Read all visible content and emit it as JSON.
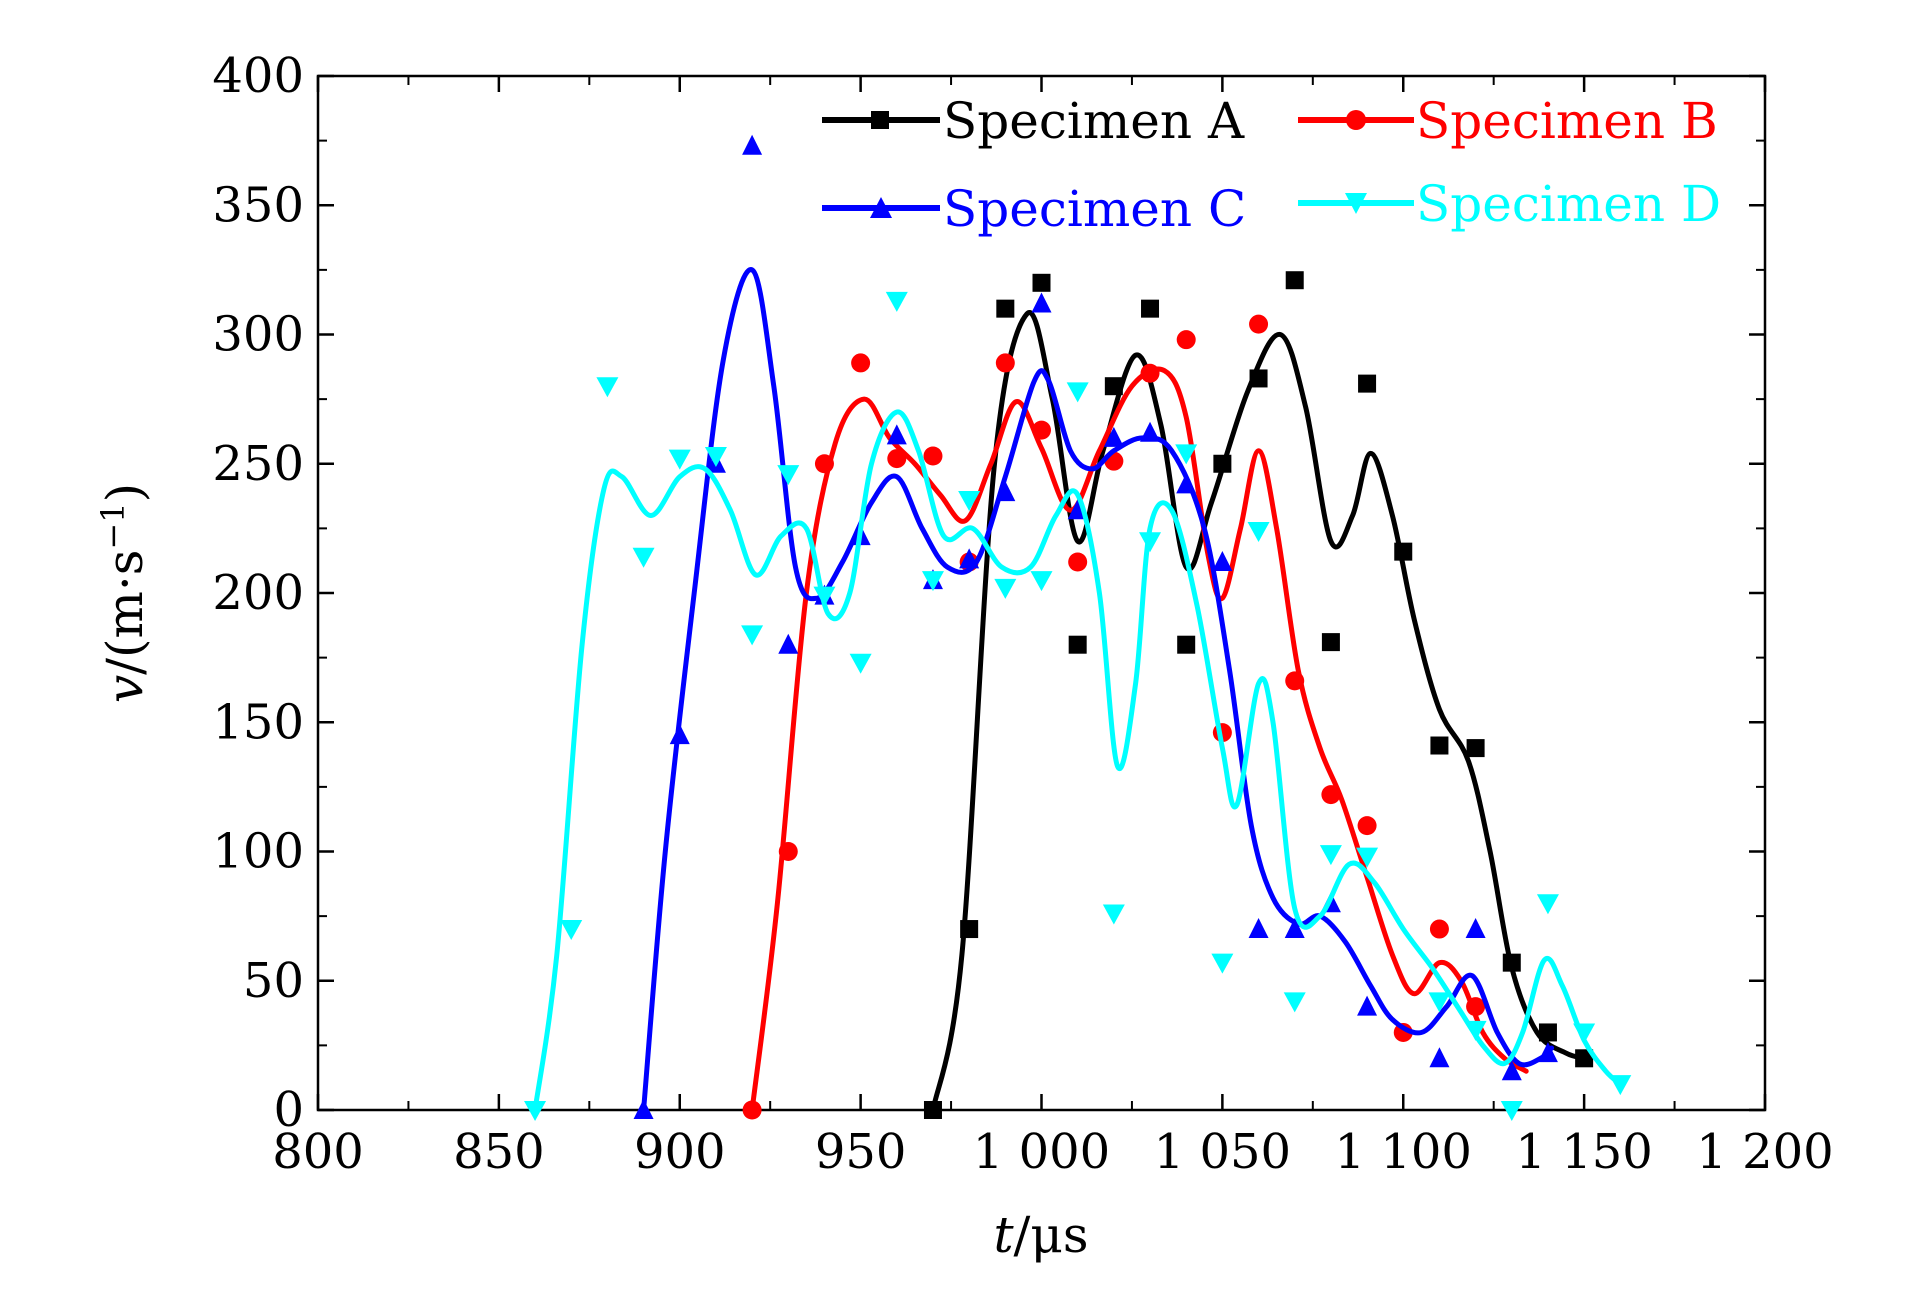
{
  "chart_data": {
    "type": "scatter",
    "xlabel": {
      "var": "t",
      "unit": "/μs"
    },
    "ylabel": {
      "var": "v",
      "unit": "/(m·s",
      "sup": "−1",
      "close": ")"
    },
    "xlim": [
      800,
      1200
    ],
    "ylim": [
      0,
      400
    ],
    "xticks": [
      800,
      850,
      900,
      950,
      1000,
      1050,
      1100,
      1150,
      1200
    ],
    "xtick_labels": [
      "800",
      "850",
      "900",
      "950",
      "1 000",
      "1 050",
      "1 100",
      "1 150",
      "1 200"
    ],
    "yticks": [
      0,
      50,
      100,
      150,
      200,
      250,
      300,
      350,
      400
    ],
    "ytick_labels": [
      "0",
      "50",
      "100",
      "150",
      "200",
      "250",
      "300",
      "350",
      "400"
    ],
    "grid": false,
    "legend": "top-right",
    "series": [
      {
        "name": "Specimen A",
        "color": "#000000",
        "marker": "square",
        "x": [
          970,
          980,
          990,
          1000,
          1010,
          1020,
          1030,
          1040,
          1050,
          1060,
          1070,
          1080,
          1090,
          1100,
          1110,
          1120,
          1130,
          1140,
          1150
        ],
        "y": [
          0,
          70,
          310,
          320,
          180,
          280,
          310,
          180,
          250,
          283,
          321,
          181,
          281,
          216,
          141,
          140,
          57,
          30,
          20
        ],
        "curve": [
          [
            970,
            0
          ],
          [
            978,
            60
          ],
          [
            987,
            250
          ],
          [
            996,
            308
          ],
          [
            1003,
            275
          ],
          [
            1010,
            220
          ],
          [
            1017,
            255
          ],
          [
            1026,
            292
          ],
          [
            1033,
            265
          ],
          [
            1040,
            210
          ],
          [
            1047,
            235
          ],
          [
            1057,
            278
          ],
          [
            1066,
            300
          ],
          [
            1073,
            272
          ],
          [
            1080,
            220
          ],
          [
            1086,
            230
          ],
          [
            1091,
            254
          ],
          [
            1097,
            230
          ],
          [
            1103,
            190
          ],
          [
            1110,
            155
          ],
          [
            1118,
            135
          ],
          [
            1124,
            100
          ],
          [
            1130,
            55
          ],
          [
            1137,
            30
          ],
          [
            1145,
            22
          ],
          [
            1150,
            20
          ]
        ]
      },
      {
        "name": "Specimen B",
        "color": "#ff0000",
        "marker": "circle",
        "x": [
          920,
          930,
          940,
          950,
          960,
          970,
          980,
          990,
          1000,
          1010,
          1020,
          1030,
          1040,
          1050,
          1060,
          1070,
          1080,
          1090,
          1100,
          1110,
          1120
        ],
        "y": [
          0,
          100,
          250,
          289,
          252,
          253,
          212,
          289,
          263,
          212,
          251,
          285,
          298,
          146,
          304,
          166,
          122,
          110,
          30,
          70,
          40
        ],
        "curve": [
          [
            920,
            0
          ],
          [
            927,
            80
          ],
          [
            935,
            200
          ],
          [
            943,
            258
          ],
          [
            951,
            275
          ],
          [
            958,
            260
          ],
          [
            965,
            250
          ],
          [
            972,
            238
          ],
          [
            979,
            228
          ],
          [
            986,
            250
          ],
          [
            993,
            274
          ],
          [
            1000,
            256
          ],
          [
            1008,
            232
          ],
          [
            1016,
            255
          ],
          [
            1025,
            280
          ],
          [
            1034,
            286
          ],
          [
            1040,
            268
          ],
          [
            1046,
            215
          ],
          [
            1050,
            198
          ],
          [
            1055,
            225
          ],
          [
            1060,
            255
          ],
          [
            1065,
            225
          ],
          [
            1071,
            170
          ],
          [
            1077,
            140
          ],
          [
            1083,
            120
          ],
          [
            1090,
            90
          ],
          [
            1097,
            60
          ],
          [
            1103,
            45
          ],
          [
            1110,
            57
          ],
          [
            1116,
            50
          ],
          [
            1122,
            30
          ],
          [
            1128,
            20
          ],
          [
            1134,
            15
          ]
        ]
      },
      {
        "name": "Specimen C",
        "color": "#0000ff",
        "marker": "triangle-up",
        "x": [
          890,
          900,
          910,
          920,
          930,
          940,
          950,
          960,
          970,
          980,
          990,
          1000,
          1010,
          1020,
          1030,
          1040,
          1050,
          1060,
          1070,
          1080,
          1090,
          1110,
          1120,
          1130,
          1140
        ],
        "y": [
          0,
          145,
          250,
          373,
          180,
          199,
          222,
          261,
          205,
          213,
          239,
          312,
          232,
          260,
          262,
          242,
          212,
          70,
          70,
          80,
          40,
          20,
          70,
          15,
          22
        ],
        "curve": [
          [
            890,
            0
          ],
          [
            896,
            100
          ],
          [
            904,
            200
          ],
          [
            912,
            290
          ],
          [
            920,
            325
          ],
          [
            926,
            280
          ],
          [
            932,
            210
          ],
          [
            938,
            198
          ],
          [
            945,
            212
          ],
          [
            953,
            235
          ],
          [
            960,
            245
          ],
          [
            967,
            225
          ],
          [
            974,
            210
          ],
          [
            982,
            212
          ],
          [
            990,
            245
          ],
          [
            998,
            282
          ],
          [
            1002,
            282
          ],
          [
            1008,
            255
          ],
          [
            1014,
            248
          ],
          [
            1020,
            255
          ],
          [
            1028,
            260
          ],
          [
            1036,
            255
          ],
          [
            1045,
            225
          ],
          [
            1052,
            170
          ],
          [
            1058,
            110
          ],
          [
            1064,
            82
          ],
          [
            1071,
            72
          ],
          [
            1077,
            75
          ],
          [
            1084,
            65
          ],
          [
            1091,
            48
          ],
          [
            1097,
            35
          ],
          [
            1105,
            30
          ],
          [
            1112,
            40
          ],
          [
            1119,
            52
          ],
          [
            1126,
            30
          ],
          [
            1132,
            18
          ],
          [
            1138,
            20
          ],
          [
            1141,
            24
          ]
        ]
      },
      {
        "name": "Specimen D",
        "color": "#00ffff",
        "marker": "triangle-down",
        "x": [
          860,
          870,
          880,
          890,
          900,
          910,
          920,
          930,
          940,
          950,
          960,
          970,
          980,
          990,
          1000,
          1010,
          1020,
          1030,
          1040,
          1050,
          1060,
          1070,
          1080,
          1090,
          1110,
          1120,
          1130,
          1140,
          1150,
          1160
        ],
        "y": [
          0,
          70,
          280,
          214,
          252,
          253,
          184,
          246,
          199,
          173,
          313,
          205,
          236,
          202,
          205,
          278,
          76,
          220,
          254,
          57,
          224,
          42,
          99,
          98,
          42,
          31,
          0,
          80,
          30,
          10
        ],
        "curve": [
          [
            860,
            0
          ],
          [
            866,
            60
          ],
          [
            873,
            180
          ],
          [
            879,
            240
          ],
          [
            884,
            245
          ],
          [
            892,
            230
          ],
          [
            900,
            245
          ],
          [
            907,
            248
          ],
          [
            914,
            232
          ],
          [
            921,
            207
          ],
          [
            928,
            222
          ],
          [
            935,
            225
          ],
          [
            941,
            192
          ],
          [
            947,
            200
          ],
          [
            953,
            250
          ],
          [
            960,
            270
          ],
          [
            966,
            255
          ],
          [
            973,
            222
          ],
          [
            981,
            225
          ],
          [
            989,
            210
          ],
          [
            997,
            210
          ],
          [
            1004,
            230
          ],
          [
            1010,
            238
          ],
          [
            1016,
            200
          ],
          [
            1021,
            133
          ],
          [
            1026,
            165
          ],
          [
            1030,
            225
          ],
          [
            1036,
            232
          ],
          [
            1043,
            195
          ],
          [
            1050,
            140
          ],
          [
            1054,
            118
          ],
          [
            1060,
            165
          ],
          [
            1064,
            150
          ],
          [
            1070,
            78
          ],
          [
            1077,
            75
          ],
          [
            1085,
            95
          ],
          [
            1092,
            88
          ],
          [
            1100,
            70
          ],
          [
            1108,
            55
          ],
          [
            1115,
            40
          ],
          [
            1122,
            25
          ],
          [
            1128,
            18
          ],
          [
            1133,
            30
          ],
          [
            1139,
            58
          ],
          [
            1144,
            48
          ],
          [
            1150,
            27
          ],
          [
            1156,
            15
          ],
          [
            1160,
            10
          ]
        ]
      }
    ]
  }
}
